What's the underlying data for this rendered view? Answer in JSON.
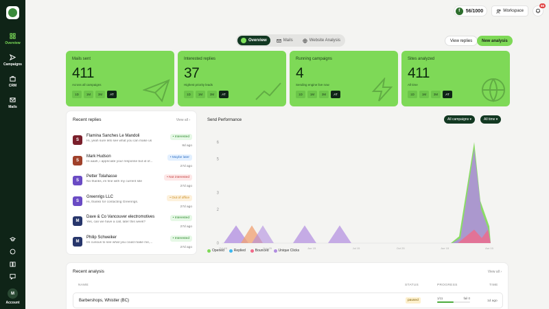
{
  "sidebar": {
    "items": [
      {
        "label": "Overview",
        "icon": "grid-icon"
      },
      {
        "label": "Campaigns",
        "icon": "send-icon"
      },
      {
        "label": "CRM",
        "icon": "briefcase-icon"
      },
      {
        "label": "Mails",
        "icon": "mail-icon"
      }
    ],
    "account_label": "Account",
    "account_initial": "M"
  },
  "topbar": {
    "credits": "56/1000",
    "credits_icon": "f",
    "workspace": "Workspace",
    "notifications": "88"
  },
  "tabs": [
    "Overview",
    "Mails",
    "Website Analysis"
  ],
  "actions": {
    "view_replies": "View replies",
    "new_analysis": "New analysis"
  },
  "stats": [
    {
      "title": "Mails sent",
      "value": "411",
      "sub": "Across all campaigns",
      "icon": "paper-plane-icon"
    },
    {
      "title": "Interested replies",
      "value": "37",
      "sub": "Highest priority leads",
      "icon": "trend-icon"
    },
    {
      "title": "Running campaigns",
      "value": "4",
      "sub": "Sending engine live now",
      "icon": "bolt-icon"
    },
    {
      "title": "Sites analyzed",
      "value": "411",
      "sub": "All time",
      "icon": "globe-icon"
    }
  ],
  "ranges": [
    "1D",
    "1M",
    "3M",
    "AT"
  ],
  "recent_replies": {
    "title": "Recent replies",
    "view_all": "View all ›",
    "rows": [
      {
        "initial": "S",
        "color": "#7a1f2b",
        "name": "Flamina Sanches Le Mandoli",
        "msg": "Hi, yeah sure lets see what you can make us",
        "status": "• Interested",
        "status_type": "int",
        "time": "8d ago"
      },
      {
        "initial": "S",
        "color": "#a0412b",
        "name": "Mark Hudson",
        "msg": "Hi aaah, i appriciate your response but id of...",
        "status": "• Maybe later",
        "status_type": "may",
        "time": "27d ago"
      },
      {
        "initial": "S",
        "color": "#6a4bc4",
        "name": "Petter Tolahasse",
        "msg": "No thanks, im fine with my current site",
        "status": "• Not interested",
        "status_type": "not",
        "time": "27d ago"
      },
      {
        "initial": "S",
        "color": "#6a4bc4",
        "name": "Greenrigs LLC",
        "msg": "Hi, thanks for contacting Greenrigs.",
        "status": "• Out of office",
        "status_type": "out",
        "time": "27d ago"
      },
      {
        "initial": "M",
        "color": "#27366b",
        "name": "Dave & Co Vancouver electromotives",
        "msg": "Yes, can we have a call, later this week?",
        "status": "• Interested",
        "status_type": "int",
        "time": "27d ago"
      },
      {
        "initial": "M",
        "color": "#27366b",
        "name": "Philip Schweiker",
        "msg": "Im curious to see what you could make me,...",
        "status": "• Interested",
        "status_type": "int",
        "time": "27d ago"
      }
    ]
  },
  "send_performance": {
    "title": "Send Performance",
    "campaign_filter": "All campaigns ▾",
    "time_filter": "All time ▾"
  },
  "chart_data": {
    "type": "area",
    "y_ticks": [
      "6",
      "5",
      "3",
      "2",
      "0"
    ],
    "ylim": [
      0,
      6
    ],
    "x_ticks": [
      "Oct 28",
      "Nov 25",
      "Apr 15",
      "Jul 15",
      "Oct 25",
      "Apr 15",
      "Apr 15"
    ],
    "series": [
      {
        "name": "Opened",
        "color": "#7ed957"
      },
      {
        "name": "Replied",
        "color": "#3db8f0"
      },
      {
        "name": "Bounced",
        "color": "#f06a8a"
      },
      {
        "name": "Unique Clicks",
        "color": "#b08ce0"
      }
    ]
  },
  "recent_analysis": {
    "title": "Recent analysis",
    "view_all": "View all ›",
    "columns": [
      "NAME",
      "STATUS",
      "PROGRESS",
      "TIME"
    ],
    "rows": [
      {
        "name": "Barbershops, Whistler (BC)",
        "status": "paused",
        "progress_done": "1/11",
        "progress_fail": "fail 0",
        "progress": 0.5,
        "time": "1d ago"
      }
    ]
  }
}
